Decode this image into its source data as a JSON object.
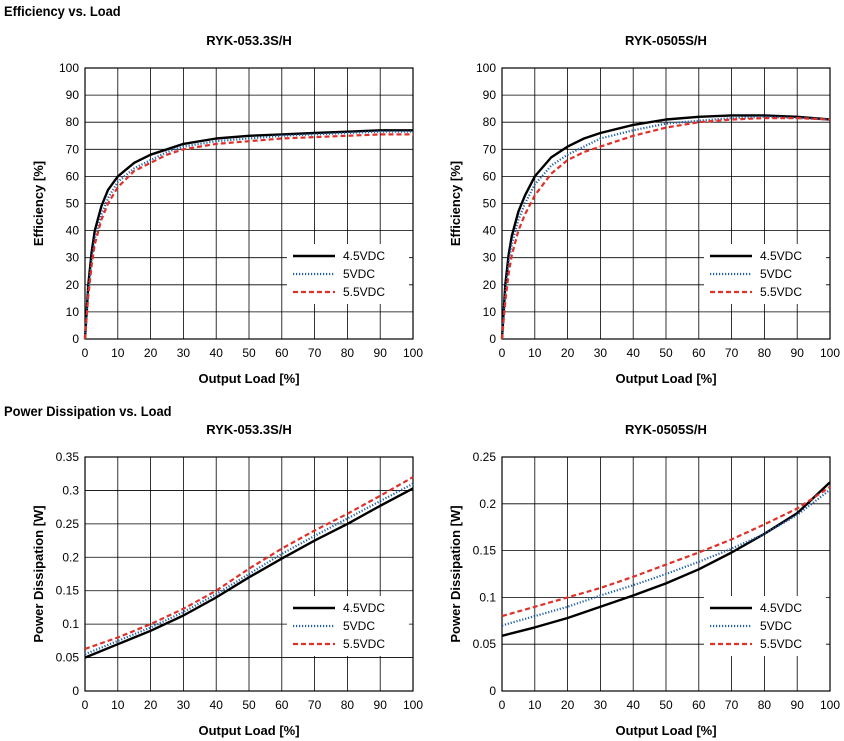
{
  "sections": {
    "efficiency_title": "Efficiency vs. Load",
    "power_title": "Power Dissipation vs. Load"
  },
  "colors": {
    "black": "#000000",
    "blue": "#1f5fa8",
    "red": "#e0302a",
    "grid": "#000000"
  },
  "chart_data": [
    {
      "type": "line",
      "title": "RYK-053.3S/H",
      "xlabel": "Output Load [%]",
      "ylabel": "Efficiency [%]",
      "xlim": [
        0,
        100
      ],
      "ylim": [
        0,
        100
      ],
      "xticks": [
        0,
        10,
        20,
        30,
        40,
        50,
        60,
        70,
        80,
        90,
        100
      ],
      "yticks": [
        0,
        10,
        20,
        30,
        40,
        50,
        60,
        70,
        80,
        90,
        100
      ],
      "grid": true,
      "legend": "bottom-right",
      "series": [
        {
          "name": "4.5VDC",
          "style": "solid",
          "color": "#000000",
          "x": [
            0,
            1,
            2,
            3,
            5,
            7,
            10,
            15,
            20,
            25,
            30,
            40,
            50,
            60,
            70,
            80,
            90,
            100
          ],
          "y": [
            0,
            20,
            32,
            40,
            49,
            55,
            60,
            65,
            68,
            70,
            72,
            74,
            75,
            75.5,
            76,
            76.5,
            77,
            77
          ]
        },
        {
          "name": "5VDC",
          "style": "dotted",
          "color": "#1f5fa8",
          "x": [
            0,
            1,
            2,
            3,
            5,
            7,
            10,
            15,
            20,
            25,
            30,
            40,
            50,
            60,
            70,
            80,
            90,
            100
          ],
          "y": [
            0,
            18,
            29,
            37,
            46,
            52,
            58,
            63,
            66,
            69,
            71,
            73,
            74,
            75,
            75.5,
            76,
            76.5,
            76.5
          ]
        },
        {
          "name": "5.5VDC",
          "style": "dashed",
          "color": "#e0302a",
          "x": [
            0,
            1,
            2,
            3,
            5,
            7,
            10,
            15,
            20,
            25,
            30,
            40,
            50,
            60,
            70,
            80,
            90,
            100
          ],
          "y": [
            0,
            16,
            27,
            35,
            44,
            50,
            56,
            62,
            65,
            68,
            70,
            72,
            73,
            74,
            74.5,
            75,
            75.5,
            75.5
          ]
        }
      ]
    },
    {
      "type": "line",
      "title": "RYK-0505S/H",
      "xlabel": "Output Load [%]",
      "ylabel": "Efficiency [%]",
      "xlim": [
        0,
        100
      ],
      "ylim": [
        0,
        100
      ],
      "xticks": [
        0,
        10,
        20,
        30,
        40,
        50,
        60,
        70,
        80,
        90,
        100
      ],
      "yticks": [
        0,
        10,
        20,
        30,
        40,
        50,
        60,
        70,
        80,
        90,
        100
      ],
      "grid": true,
      "legend": "bottom-right",
      "series": [
        {
          "name": "4.5VDC",
          "style": "solid",
          "color": "#000000",
          "x": [
            0,
            1,
            2,
            3,
            5,
            7,
            10,
            15,
            20,
            25,
            30,
            40,
            50,
            60,
            70,
            80,
            90,
            100
          ],
          "y": [
            0,
            20,
            31,
            38,
            47,
            53,
            60,
            67,
            71,
            74,
            76,
            79,
            81,
            82,
            82.5,
            82.5,
            82,
            81
          ]
        },
        {
          "name": "5VDC",
          "style": "dotted",
          "color": "#1f5fa8",
          "x": [
            0,
            1,
            2,
            3,
            5,
            7,
            10,
            15,
            20,
            25,
            30,
            40,
            50,
            60,
            70,
            80,
            90,
            100
          ],
          "y": [
            0,
            17,
            28,
            35,
            44,
            50,
            57,
            64,
            68,
            71,
            74,
            77,
            79.5,
            80.5,
            81.5,
            82,
            81.5,
            81
          ]
        },
        {
          "name": "5.5VDC",
          "style": "dashed",
          "color": "#e0302a",
          "x": [
            0,
            1,
            2,
            3,
            5,
            7,
            10,
            15,
            20,
            25,
            30,
            40,
            50,
            60,
            70,
            80,
            90,
            100
          ],
          "y": [
            0,
            14,
            24,
            31,
            40,
            46,
            53,
            61,
            66,
            69,
            71,
            75,
            78,
            80,
            81,
            81.5,
            81.5,
            81
          ]
        }
      ]
    },
    {
      "type": "line",
      "title": "RYK-053.3S/H",
      "xlabel": "Output Load [%]",
      "ylabel": "Power Dissipation [W]",
      "xlim": [
        0,
        100
      ],
      "ylim": [
        0,
        0.35
      ],
      "xticks": [
        0,
        10,
        20,
        30,
        40,
        50,
        60,
        70,
        80,
        90,
        100
      ],
      "yticks": [
        0,
        0.05,
        0.1,
        0.15,
        0.2,
        0.25,
        0.3,
        0.35
      ],
      "grid": true,
      "legend": "bottom-right",
      "series": [
        {
          "name": "4.5VDC",
          "style": "solid",
          "color": "#000000",
          "x": [
            0,
            10,
            20,
            30,
            40,
            50,
            60,
            70,
            80,
            90,
            100
          ],
          "y": [
            0.05,
            0.07,
            0.09,
            0.113,
            0.14,
            0.17,
            0.198,
            0.225,
            0.25,
            0.277,
            0.303
          ]
        },
        {
          "name": "5VDC",
          "style": "dotted",
          "color": "#1f5fa8",
          "x": [
            0,
            10,
            20,
            30,
            40,
            50,
            60,
            70,
            80,
            90,
            100
          ],
          "y": [
            0.055,
            0.075,
            0.095,
            0.118,
            0.145,
            0.175,
            0.205,
            0.232,
            0.258,
            0.284,
            0.31
          ]
        },
        {
          "name": "5.5VDC",
          "style": "dashed",
          "color": "#e0302a",
          "x": [
            0,
            10,
            20,
            30,
            40,
            50,
            60,
            70,
            80,
            90,
            100
          ],
          "y": [
            0.063,
            0.08,
            0.1,
            0.123,
            0.15,
            0.183,
            0.213,
            0.24,
            0.265,
            0.292,
            0.32
          ]
        }
      ]
    },
    {
      "type": "line",
      "title": "RYK-0505S/H",
      "xlabel": "Output Load [%]",
      "ylabel": "Power Dissipation [W]",
      "xlim": [
        0,
        100
      ],
      "ylim": [
        0,
        0.25
      ],
      "xticks": [
        0,
        10,
        20,
        30,
        40,
        50,
        60,
        70,
        80,
        90,
        100
      ],
      "yticks": [
        0,
        0.05,
        0.1,
        0.15,
        0.2,
        0.25
      ],
      "grid": true,
      "legend": "bottom-right",
      "series": [
        {
          "name": "4.5VDC",
          "style": "solid",
          "color": "#000000",
          "x": [
            0,
            10,
            20,
            30,
            40,
            50,
            60,
            70,
            80,
            90,
            100
          ],
          "y": [
            0.059,
            0.068,
            0.078,
            0.09,
            0.102,
            0.115,
            0.13,
            0.148,
            0.168,
            0.19,
            0.223
          ]
        },
        {
          "name": "5VDC",
          "style": "dotted",
          "color": "#1f5fa8",
          "x": [
            0,
            10,
            20,
            30,
            40,
            50,
            60,
            70,
            80,
            90,
            100
          ],
          "y": [
            0.07,
            0.08,
            0.09,
            0.102,
            0.113,
            0.125,
            0.138,
            0.152,
            0.168,
            0.188,
            0.215
          ]
        },
        {
          "name": "5.5VDC",
          "style": "dashed",
          "color": "#e0302a",
          "x": [
            0,
            10,
            20,
            30,
            40,
            50,
            60,
            70,
            80,
            90,
            100
          ],
          "y": [
            0.08,
            0.09,
            0.1,
            0.11,
            0.122,
            0.135,
            0.148,
            0.162,
            0.178,
            0.195,
            0.218
          ]
        }
      ]
    }
  ]
}
